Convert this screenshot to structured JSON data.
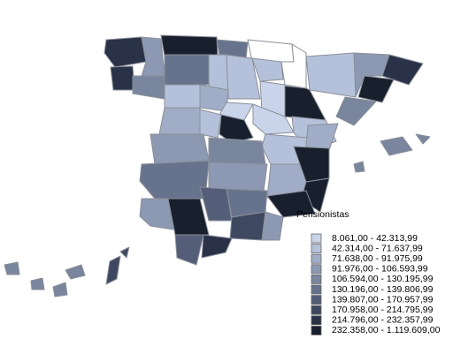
{
  "legend": {
    "title": "Pensionistas",
    "items": [
      {
        "label": "8.061,00 - 42.313,99",
        "color": "#c9d4ea"
      },
      {
        "label": "42.314,00 - 71.637,99",
        "color": "#b5c1da"
      },
      {
        "label": "71.638,00 - 91.975,99",
        "color": "#a1adc6"
      },
      {
        "label": "91.976,00 - 106.593,99",
        "color": "#8d99b2"
      },
      {
        "label": "106.594,00 - 130.195,99",
        "color": "#7a869e"
      },
      {
        "label": "130.196,00 - 139.806,99",
        "color": "#67738c"
      },
      {
        "label": "139.807,00 - 170.957,99",
        "color": "#545e78"
      },
      {
        "label": "170.958,00 - 214.795,99",
        "color": "#3e4860"
      },
      {
        "label": "214.796,00 - 232.357,99",
        "color": "#2a3248"
      },
      {
        "label": "232.358,00 - 1.119.609,00",
        "color": "#18202e"
      }
    ]
  }
}
